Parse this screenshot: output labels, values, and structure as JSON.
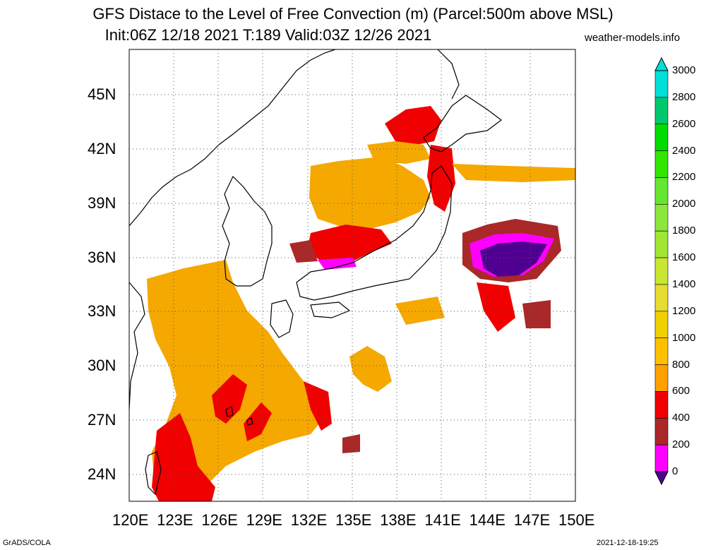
{
  "header": {
    "title_line1": "GFS Distace to the Level of Free Convection (m) (Parcel:500m above MSL)",
    "title_line2": "Init:06Z 12/18 2021 T:189 Valid:03Z 12/26 2021",
    "site": "weather-models.info"
  },
  "footer": {
    "left": "GrADS/COLA",
    "right": "2021-12-18-19:25"
  },
  "map": {
    "lon_labels": [
      "120E",
      "123E",
      "126E",
      "129E",
      "132E",
      "135E",
      "138E",
      "141E",
      "144E",
      "147E",
      "150E"
    ],
    "lat_labels": [
      "45N",
      "42N",
      "39N",
      "36N",
      "33N",
      "30N",
      "27N",
      "24N"
    ],
    "lon_range": [
      120,
      150
    ],
    "lat_range": [
      22.5,
      47.5
    ],
    "grid": "dotted"
  },
  "colorbar": {
    "labels": [
      "3000",
      "2800",
      "2600",
      "2400",
      "2200",
      "2000",
      "1800",
      "1600",
      "1400",
      "1200",
      "1000",
      "800",
      "600",
      "400",
      "200",
      "0"
    ],
    "colors": [
      "#00e0d8",
      "#00c86e",
      "#00dc00",
      "#32e600",
      "#64e632",
      "#8ce63c",
      "#a0e632",
      "#c8e632",
      "#e6dc32",
      "#f0d000",
      "#ffc000",
      "#ffa000",
      "#f00000",
      "#aa2828",
      "#ff00ff",
      "#500090"
    ]
  }
}
